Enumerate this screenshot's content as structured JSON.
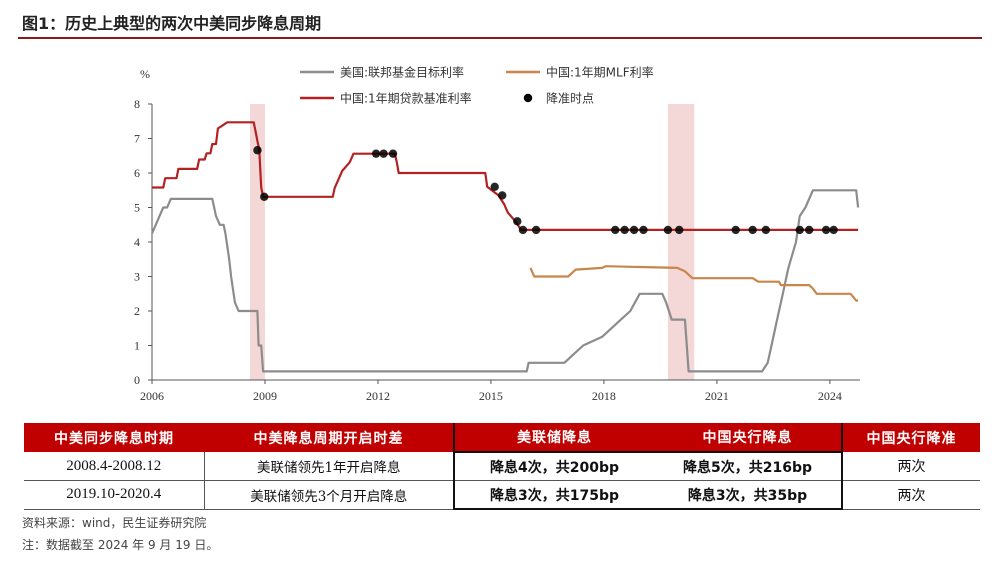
{
  "figure": {
    "title": "图1：历史上典型的两次中美同步降息周期",
    "source": "资料来源：wind，民生证券研究院",
    "note": "注：数据截至 2024 年 9 月 19 日。"
  },
  "chart_data": {
    "type": "line",
    "ylabel": "%",
    "ylim": [
      0,
      8
    ],
    "yticks": [
      0,
      1,
      2,
      3,
      4,
      5,
      6,
      7,
      8
    ],
    "xlim": [
      2006.0,
      2024.8
    ],
    "xticks": [
      2006,
      2009,
      2012,
      2015,
      2018,
      2021,
      2024
    ],
    "shaded_periods": [
      [
        2008.6,
        2009.0
      ],
      [
        2019.7,
        2020.4
      ]
    ],
    "legend": [
      {
        "label": "美国:联邦基金目标利率",
        "color": "#8c8c8c",
        "kind": "line"
      },
      {
        "label": "中国:1年期MLF利率",
        "color": "#c8864a",
        "kind": "line"
      },
      {
        "label": "中国:1年期贷款基准利率",
        "color": "#b22222",
        "kind": "line"
      },
      {
        "label": "降准时点",
        "color": "#000000",
        "kind": "dot"
      }
    ],
    "series": [
      {
        "name": "美国:联邦基金目标利率",
        "color": "#8c8c8c",
        "x": [
          2006.0,
          2006.1,
          2006.2,
          2006.3,
          2006.4,
          2006.5,
          2006.6,
          2007.6,
          2007.7,
          2007.8,
          2007.9,
          2007.95,
          2008.05,
          2008.1,
          2008.2,
          2008.3,
          2008.35,
          2008.8,
          2008.83,
          2008.9,
          2008.95,
          2009.0,
          2015.95,
          2016.0,
          2016.95,
          2017.2,
          2017.45,
          2017.95,
          2018.2,
          2018.45,
          2018.7,
          2018.95,
          2019.55,
          2019.65,
          2019.8,
          2020.15,
          2020.2,
          2020.25,
          2022.2,
          2022.35,
          2022.45,
          2022.6,
          2022.75,
          2022.9,
          2023.1,
          2023.2,
          2023.35,
          2023.55,
          2024.7,
          2024.75
        ],
        "values": [
          4.25,
          4.5,
          4.75,
          5.0,
          5.0,
          5.25,
          5.25,
          5.25,
          4.75,
          4.5,
          4.5,
          4.25,
          3.5,
          3.0,
          2.25,
          2.0,
          2.0,
          2.0,
          1.0,
          1.0,
          0.25,
          0.25,
          0.25,
          0.5,
          0.5,
          0.75,
          1.0,
          1.25,
          1.5,
          1.75,
          2.0,
          2.5,
          2.5,
          2.25,
          1.75,
          1.75,
          1.0,
          0.25,
          0.25,
          0.5,
          1.0,
          1.75,
          2.5,
          3.25,
          4.0,
          4.75,
          5.0,
          5.5,
          5.5,
          5.0
        ]
      },
      {
        "name": "中国:1年期MLF利率",
        "color": "#c8864a",
        "x": [
          2016.05,
          2016.15,
          2017.05,
          2017.15,
          2017.25,
          2017.95,
          2018.05,
          2019.95,
          2020.15,
          2020.35,
          2021.95,
          2022.1,
          2022.65,
          2022.7,
          2023.45,
          2023.55,
          2023.65,
          2023.75,
          2024.55,
          2024.7,
          2024.75
        ],
        "values": [
          3.25,
          3.0,
          3.0,
          3.1,
          3.2,
          3.25,
          3.3,
          3.25,
          3.15,
          2.95,
          2.95,
          2.85,
          2.85,
          2.75,
          2.75,
          2.65,
          2.5,
          2.5,
          2.5,
          2.3,
          2.3
        ]
      },
      {
        "name": "中国:1年期贷款基准利率",
        "color": "#b22222",
        "x": [
          2006.0,
          2006.3,
          2006.35,
          2006.65,
          2006.7,
          2007.2,
          2007.25,
          2007.4,
          2007.45,
          2007.55,
          2007.6,
          2007.7,
          2007.75,
          2008.0,
          2008.7,
          2008.75,
          2008.8,
          2008.85,
          2008.9,
          2008.95,
          2009.0,
          2010.8,
          2010.85,
          2010.95,
          2011.05,
          2011.25,
          2011.35,
          2011.55,
          2012.45,
          2012.5,
          2012.55,
          2014.85,
          2014.9,
          2015.2,
          2015.35,
          2015.45,
          2015.65,
          2015.8,
          2016.0,
          2024.75
        ],
        "values": [
          5.58,
          5.58,
          5.85,
          5.85,
          6.12,
          6.12,
          6.39,
          6.39,
          6.57,
          6.57,
          6.84,
          6.84,
          7.29,
          7.47,
          7.47,
          7.2,
          6.93,
          6.66,
          5.58,
          5.31,
          5.31,
          5.31,
          5.56,
          5.81,
          6.06,
          6.31,
          6.56,
          6.56,
          6.56,
          6.31,
          6.0,
          6.0,
          5.6,
          5.35,
          5.1,
          4.85,
          4.6,
          4.35,
          4.35,
          4.35
        ]
      }
    ],
    "rrr_cut_points": {
      "name": "降准时点",
      "x": [
        2008.8,
        2008.98,
        2011.95,
        2012.15,
        2012.4,
        2015.1,
        2015.3,
        2015.7,
        2015.85,
        2016.2,
        2018.3,
        2018.55,
        2018.8,
        2019.05,
        2019.7,
        2020.0,
        2021.5,
        2021.95,
        2022.3,
        2023.2,
        2023.45,
        2023.9,
        2024.1
      ],
      "values": [
        6.66,
        5.31,
        6.56,
        6.56,
        6.56,
        5.6,
        5.35,
        4.6,
        4.35,
        4.35,
        4.35,
        4.35,
        4.35,
        4.35,
        4.35,
        4.35,
        4.35,
        4.35,
        4.35,
        4.35,
        4.35,
        4.35,
        4.35
      ]
    }
  },
  "table": {
    "headers": [
      "中美同步降息时期",
      "中美降息周期开启时差",
      "美联储降息",
      "中国央行降息",
      "中国央行降准"
    ],
    "rows": [
      [
        "2008.4-2008.12",
        "美联储领先1年开启降息",
        "降息4次，共200bp",
        "降息5次，共216bp",
        "两次"
      ],
      [
        "2019.10-2020.4",
        "美联储领先3个月开启降息",
        "降息3次，共175bp",
        "降息3次，共35bp",
        "两次"
      ]
    ]
  }
}
